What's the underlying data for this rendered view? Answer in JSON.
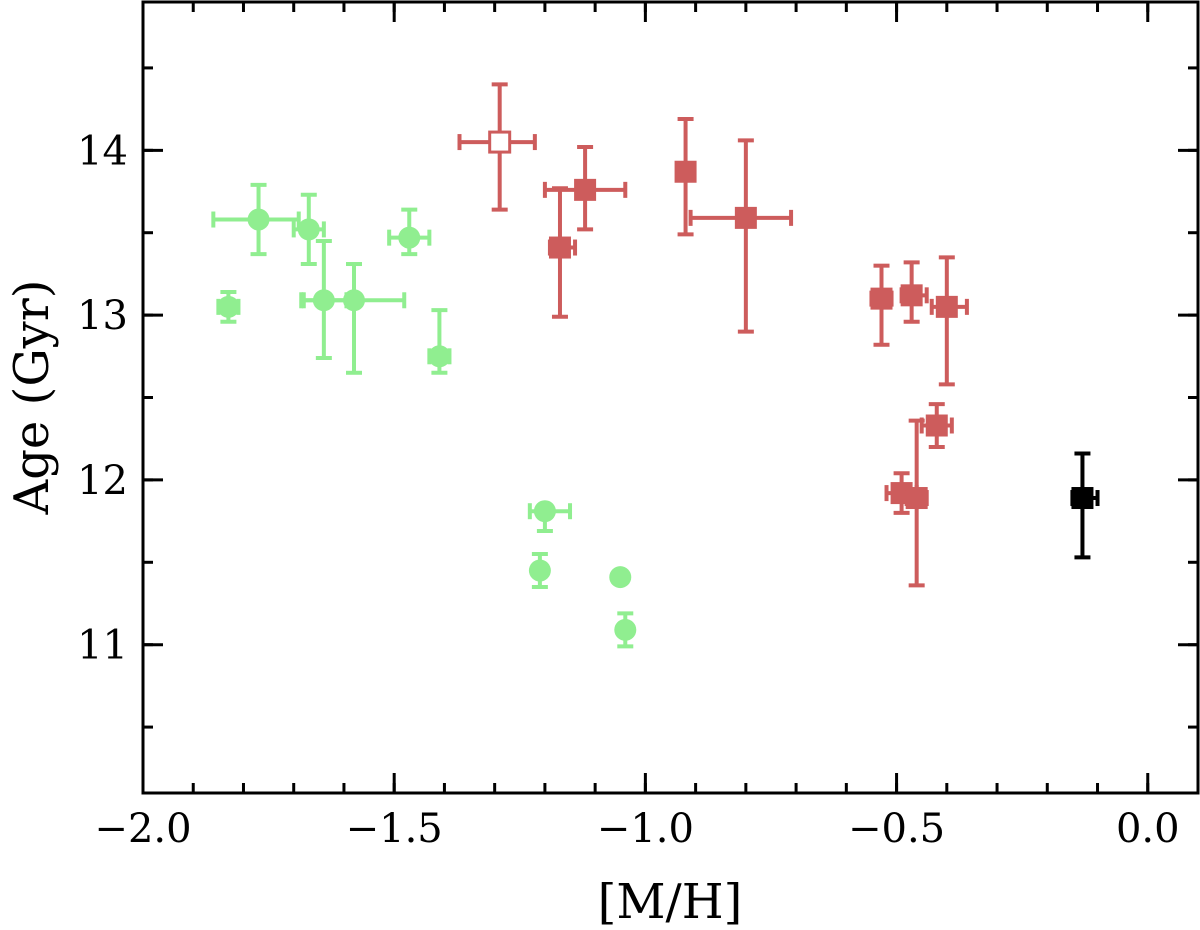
{
  "chart_data": {
    "type": "scatter",
    "title": "",
    "xlabel": "[M/H]",
    "ylabel": "Age (Gyr)",
    "xlim": [
      -2.0,
      0.1
    ],
    "ylim": [
      10.1,
      14.9
    ],
    "xticks": [
      -2.0,
      -1.5,
      -1.0,
      -0.5,
      0.0
    ],
    "xtick_labels": [
      "−2.0",
      "−1.5",
      "−1.0",
      "−0.5",
      "0.0"
    ],
    "yticks": [
      11,
      12,
      13,
      14
    ],
    "ytick_labels": [
      "11",
      "12",
      "13",
      "14"
    ],
    "x_minor_step": 0.1,
    "y_minor_step": 0.5,
    "grid": false,
    "legend": "none",
    "series": [
      {
        "color": "#90EE90",
        "marker": "circle",
        "filled": true,
        "points": [
          {
            "x": -1.83,
            "y": 13.05,
            "xerr": [
              0.02,
              0.02
            ],
            "yerr": [
              0.09,
              0.09
            ]
          },
          {
            "x": -1.77,
            "y": 13.58,
            "xerr": [
              0.09,
              0.08
            ],
            "yerr": [
              0.21,
              0.21
            ]
          },
          {
            "x": -1.67,
            "y": 13.52,
            "xerr": [
              0.03,
              0.03
            ],
            "yerr": [
              0.21,
              0.21
            ]
          },
          {
            "x": -1.64,
            "y": 13.09,
            "xerr": [
              0.045,
              0.045
            ],
            "yerr": [
              0.35,
              0.36
            ]
          },
          {
            "x": -1.58,
            "y": 13.09,
            "xerr": [
              0.1,
              0.1
            ],
            "yerr": [
              0.44,
              0.22
            ]
          },
          {
            "x": -1.47,
            "y": 13.47,
            "xerr": [
              0.04,
              0.04
            ],
            "yerr": [
              0.1,
              0.17
            ]
          },
          {
            "x": -1.41,
            "y": 12.75,
            "xerr": [
              0.02,
              0.02
            ],
            "yerr": [
              0.1,
              0.28
            ]
          },
          {
            "x": -1.2,
            "y": 11.81,
            "xerr": [
              0.03,
              0.05
            ],
            "yerr": [
              0.12,
              0.03
            ]
          },
          {
            "x": -1.21,
            "y": 11.45,
            "xerr": [
              0.01,
              0.01
            ],
            "yerr": [
              0.1,
              0.1
            ]
          },
          {
            "x": -1.05,
            "y": 11.41,
            "xerr": [
              0.01,
              0.01
            ],
            "yerr": [
              0.02,
              0.02
            ]
          },
          {
            "x": -1.04,
            "y": 11.09,
            "xerr": [
              0.01,
              0.01
            ],
            "yerr": [
              0.1,
              0.1
            ]
          }
        ]
      },
      {
        "color": "#CD5C5C",
        "marker": "square",
        "filled": true,
        "points": [
          {
            "x": -1.17,
            "y": 13.41,
            "xerr": [
              0.02,
              0.03
            ],
            "yerr": [
              0.42,
              0.36
            ]
          },
          {
            "x": -1.12,
            "y": 13.76,
            "xerr": [
              0.08,
              0.08
            ],
            "yerr": [
              0.24,
              0.26
            ]
          },
          {
            "x": -0.92,
            "y": 13.87,
            "xerr": [
              0.01,
              0.01
            ],
            "yerr": [
              0.38,
              0.32
            ]
          },
          {
            "x": -0.8,
            "y": 13.59,
            "xerr": [
              0.11,
              0.09
            ],
            "yerr": [
              0.69,
              0.47
            ]
          },
          {
            "x": -0.53,
            "y": 13.1,
            "xerr": [
              0.02,
              0.02
            ],
            "yerr": [
              0.28,
              0.2
            ]
          },
          {
            "x": -0.47,
            "y": 13.12,
            "xerr": [
              0.02,
              0.03
            ],
            "yerr": [
              0.16,
              0.2
            ]
          },
          {
            "x": -0.4,
            "y": 13.05,
            "xerr": [
              0.03,
              0.04
            ],
            "yerr": [
              0.47,
              0.3
            ]
          },
          {
            "x": -0.42,
            "y": 12.33,
            "xerr": [
              0.03,
              0.03
            ],
            "yerr": [
              0.13,
              0.13
            ]
          },
          {
            "x": -0.49,
            "y": 11.92,
            "xerr": [
              0.03,
              0.03
            ],
            "yerr": [
              0.12,
              0.12
            ]
          },
          {
            "x": -0.46,
            "y": 11.89,
            "xerr": [
              0.02,
              0.02
            ],
            "yerr": [
              0.53,
              0.47
            ]
          }
        ]
      },
      {
        "color": "#CD5C5C",
        "marker": "square",
        "filled": false,
        "points": [
          {
            "x": -1.29,
            "y": 14.05,
            "xerr": [
              0.08,
              0.07
            ],
            "yerr": [
              0.41,
              0.35
            ]
          }
        ]
      },
      {
        "color": "#000000",
        "marker": "square",
        "filled": true,
        "points": [
          {
            "x": -0.13,
            "y": 11.89,
            "xerr": [
              0.02,
              0.03
            ],
            "yerr": [
              0.36,
              0.27
            ]
          }
        ]
      }
    ]
  }
}
